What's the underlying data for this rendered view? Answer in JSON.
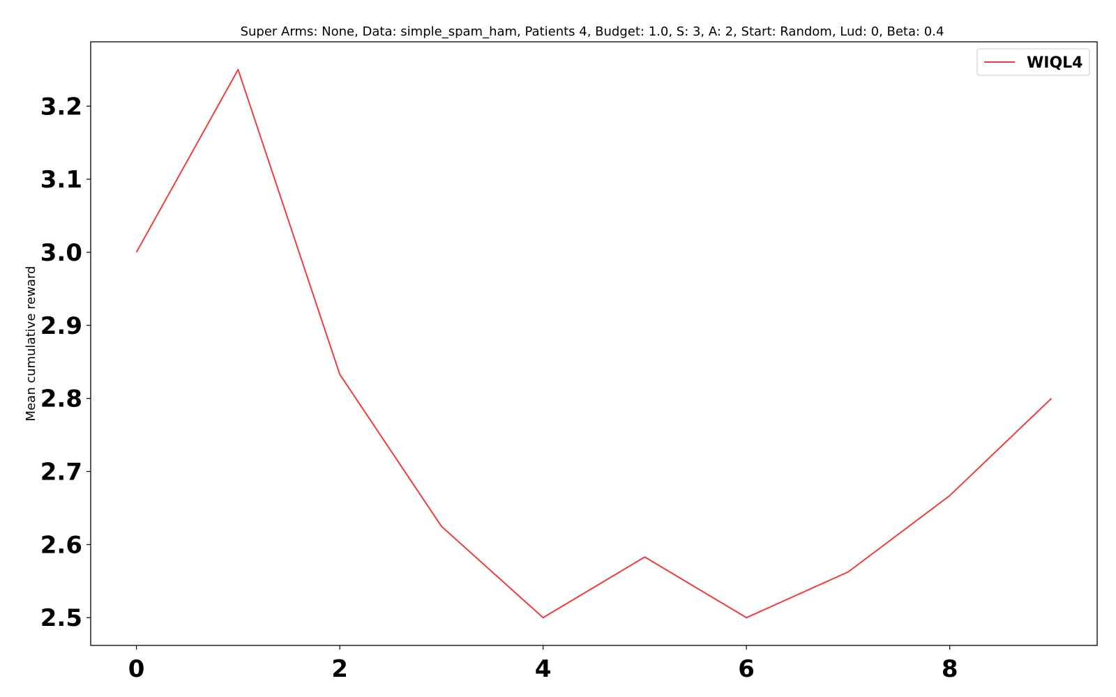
{
  "chart_data": {
    "type": "line",
    "title": "Super Arms: None, Data: simple_spam_ham, Patients 4, Budget: 1.0, S: 3, A: 2, Start: Random, Lud: 0, Beta: 0.4",
    "xlabel": "",
    "ylabel": "Mean cumulative reward",
    "x": [
      0,
      1,
      2,
      3,
      4,
      5,
      6,
      7,
      8,
      9
    ],
    "series": [
      {
        "name": "WIQL4",
        "color": "#f03c3c",
        "values": [
          3.0,
          3.25,
          2.833,
          2.625,
          2.5,
          2.583,
          2.5,
          2.5625,
          2.667,
          2.8
        ]
      }
    ],
    "xlim": [
      -0.45,
      9.45
    ],
    "ylim": [
      2.462,
      3.288
    ],
    "xticks": [
      0,
      2,
      4,
      6,
      8
    ],
    "xtick_labels": [
      "0",
      "2",
      "4",
      "6",
      "8"
    ],
    "yticks": [
      2.5,
      2.6,
      2.7,
      2.8,
      2.9,
      3.0,
      3.1,
      3.2
    ],
    "ytick_labels": [
      "2.5",
      "2.6",
      "2.7",
      "2.8",
      "2.9",
      "3.0",
      "3.1",
      "3.2"
    ],
    "grid": false,
    "legend_position": "top-right"
  }
}
